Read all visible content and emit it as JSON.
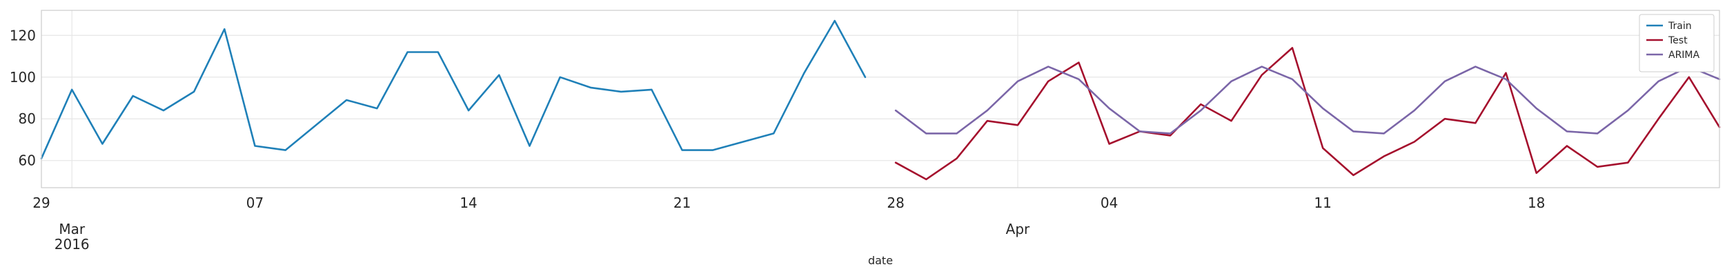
{
  "chart_data": {
    "type": "line",
    "xlabel": "date",
    "ylabel": "",
    "title": "",
    "ylim": [
      47,
      132
    ],
    "xlim": [
      "2016-02-29",
      "2016-04-24"
    ],
    "grid": true,
    "legend_position": "top-right",
    "x_ticks": [
      {
        "date": "2016-02-29",
        "label": "29"
      },
      {
        "date": "2016-03-07",
        "label": "07"
      },
      {
        "date": "2016-03-14",
        "label": "14"
      },
      {
        "date": "2016-03-21",
        "label": "21"
      },
      {
        "date": "2016-03-28",
        "label": "28"
      },
      {
        "date": "2016-04-04",
        "label": "04"
      },
      {
        "date": "2016-04-11",
        "label": "11"
      },
      {
        "date": "2016-04-18",
        "label": "18"
      }
    ],
    "month_labels": [
      {
        "date": "2016-03-01",
        "label": "Mar"
      },
      {
        "date": "2016-04-01",
        "label": "Apr"
      }
    ],
    "year_labels": [
      {
        "date": "2016-03-01",
        "label": "2016"
      }
    ],
    "y_ticks": [
      60,
      80,
      100,
      120
    ],
    "series": [
      {
        "name": "Train",
        "color": "#1f80b8",
        "x": [
          "2016-02-29",
          "2016-03-01",
          "2016-03-02",
          "2016-03-03",
          "2016-03-04",
          "2016-03-05",
          "2016-03-06",
          "2016-03-07",
          "2016-03-08",
          "2016-03-09",
          "2016-03-10",
          "2016-03-11",
          "2016-03-12",
          "2016-03-13",
          "2016-03-14",
          "2016-03-15",
          "2016-03-16",
          "2016-03-17",
          "2016-03-18",
          "2016-03-19",
          "2016-03-20",
          "2016-03-21",
          "2016-03-22",
          "2016-03-23",
          "2016-03-24",
          "2016-03-25",
          "2016-03-26",
          "2016-03-27"
        ],
        "values": [
          61,
          94,
          68,
          91,
          84,
          93,
          123,
          67,
          65,
          77,
          89,
          85,
          112,
          112,
          84,
          101,
          67,
          100,
          95,
          93,
          94,
          65,
          65,
          69,
          73,
          102,
          127,
          100
        ]
      },
      {
        "name": "Test",
        "color": "#a50f2d",
        "x": [
          "2016-03-28",
          "2016-03-29",
          "2016-03-30",
          "2016-03-31",
          "2016-04-01",
          "2016-04-02",
          "2016-04-03",
          "2016-04-04",
          "2016-04-05",
          "2016-04-06",
          "2016-04-07",
          "2016-04-08",
          "2016-04-09",
          "2016-04-10",
          "2016-04-11",
          "2016-04-12",
          "2016-04-13",
          "2016-04-14",
          "2016-04-15",
          "2016-04-16",
          "2016-04-17",
          "2016-04-18",
          "2016-04-19",
          "2016-04-20",
          "2016-04-21",
          "2016-04-22",
          "2016-04-23",
          "2016-04-24"
        ],
        "values": [
          59,
          51,
          61,
          79,
          77,
          98,
          107,
          68,
          74,
          72,
          87,
          79,
          101,
          114,
          66,
          53,
          62,
          69,
          80,
          78,
          102,
          54,
          67,
          57,
          59,
          80,
          100,
          76
        ]
      },
      {
        "name": "ARIMA",
        "color": "#7b66a8",
        "x": [
          "2016-03-28",
          "2016-03-29",
          "2016-03-30",
          "2016-03-31",
          "2016-04-01",
          "2016-04-02",
          "2016-04-03",
          "2016-04-04",
          "2016-04-05",
          "2016-04-06",
          "2016-04-07",
          "2016-04-08",
          "2016-04-09",
          "2016-04-10",
          "2016-04-11",
          "2016-04-12",
          "2016-04-13",
          "2016-04-14",
          "2016-04-15",
          "2016-04-16",
          "2016-04-17",
          "2016-04-18",
          "2016-04-19",
          "2016-04-20",
          "2016-04-21",
          "2016-04-22",
          "2016-04-23",
          "2016-04-24"
        ],
        "values": [
          84,
          73,
          73,
          84,
          98,
          105,
          99,
          85,
          74,
          73,
          84,
          98,
          105,
          99,
          85,
          74,
          73,
          84,
          98,
          105,
          99,
          85,
          74,
          73,
          84,
          98,
          105,
          99
        ]
      }
    ]
  }
}
